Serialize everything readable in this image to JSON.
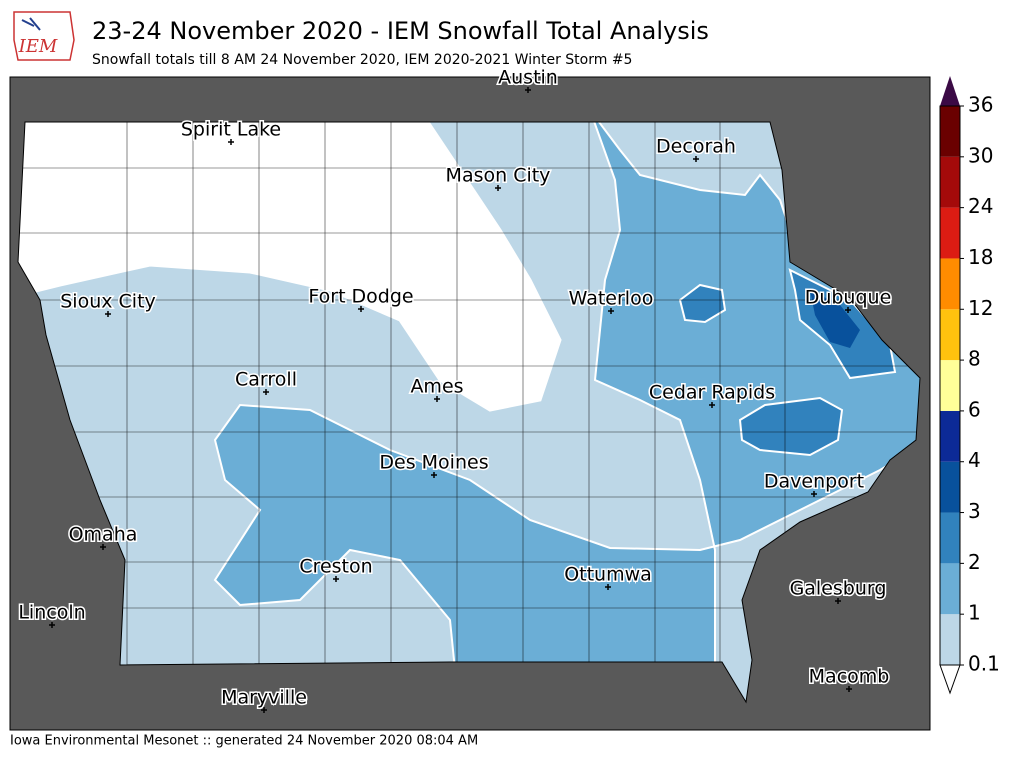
{
  "header": {
    "logo": "IEM",
    "title": "23-24 November 2020 - IEM Snowfall Total Analysis",
    "subtitle": "Snowfall totals till 8 AM 24 November 2020, IEM 2020-2021 Winter Storm #5"
  },
  "cities": [
    "Austin",
    "Spirit Lake",
    "Decorah",
    "Mason City",
    "Sioux City",
    "Fort Dodge",
    "Waterloo",
    "Dubuque",
    "Carroll",
    "Ames",
    "Cedar Rapids",
    "Des Moines",
    "Davenport",
    "Omaha",
    "Creston",
    "Ottumwa",
    "Galesburg",
    "Lincoln",
    "Maryville",
    "Macomb"
  ],
  "legend": {
    "levels": [
      0.1,
      1,
      2,
      3,
      4,
      6,
      8,
      12,
      18,
      24,
      30,
      36
    ],
    "colors": [
      "#bdd7e7",
      "#6baed6",
      "#3182bd",
      "#08519c",
      "#0c2a96",
      "#ffff99",
      "#ffc20e",
      "#ff8c00",
      "#dc1c13",
      "#a40a0a",
      "#6a0000"
    ],
    "over_color": "#3b0a45"
  },
  "footer": "Iowa Environmental Mesonet :: generated 24 November 2020 08:04 AM"
}
